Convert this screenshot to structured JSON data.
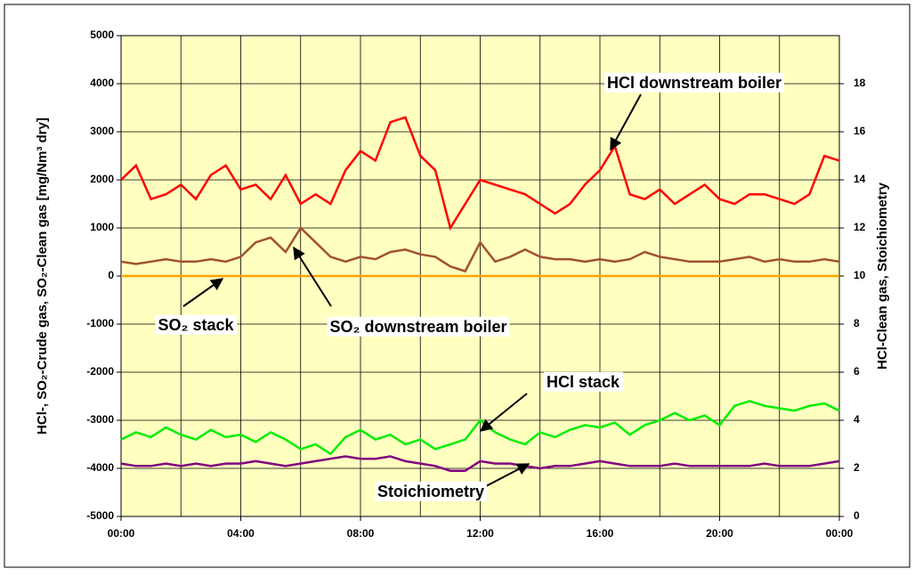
{
  "chart_data": {
    "type": "line",
    "ylabel": "HCl-, SO₂-Crude gas, SO₂-Clean gas [mg/Nm³ dry]",
    "y2label": "HCl-Clean gas, Stoichiometry",
    "x": [
      0,
      0.5,
      1,
      1.5,
      2,
      2.5,
      3,
      3.5,
      4,
      4.5,
      5,
      5.5,
      6,
      6.5,
      7,
      7.5,
      8,
      8.5,
      9,
      9.5,
      10,
      10.5,
      11,
      11.5,
      12,
      12.5,
      13,
      13.5,
      14,
      14.5,
      15,
      15.5,
      16,
      16.5,
      17,
      17.5,
      18,
      18.5,
      19,
      19.5,
      20,
      20.5,
      21,
      21.5,
      22,
      22.5,
      23,
      23.5,
      24
    ],
    "xlim": [
      0,
      24
    ],
    "xticks": [
      {
        "value": 0,
        "label": "00:00"
      },
      {
        "value": 4,
        "label": "04:00"
      },
      {
        "value": 8,
        "label": "08:00"
      },
      {
        "value": 12,
        "label": "12:00"
      },
      {
        "value": 16,
        "label": "16:00"
      },
      {
        "value": 20,
        "label": "20:00"
      },
      {
        "value": 24,
        "label": "00:00"
      }
    ],
    "xminorticks": [
      2,
      6,
      10,
      14,
      18,
      22
    ],
    "ylim": [
      -5000,
      5000
    ],
    "yticks": [
      -5000,
      -4000,
      -3000,
      -2000,
      -1000,
      0,
      1000,
      2000,
      3000,
      4000,
      5000
    ],
    "y2lim": [
      0,
      20
    ],
    "y2ticks": [
      0,
      2,
      4,
      6,
      8,
      10,
      12,
      14,
      16,
      18
    ],
    "grid": true,
    "series": [
      {
        "name": "HCl downstream boiler",
        "color": "#ff0000",
        "values": [
          2000,
          2300,
          1600,
          1700,
          1900,
          1600,
          2100,
          2300,
          1800,
          1900,
          1600,
          2100,
          1500,
          1700,
          1500,
          2200,
          2600,
          2400,
          3200,
          3300,
          2500,
          2200,
          1000,
          1500,
          2000,
          1900,
          1800,
          1700,
          1500,
          1300,
          1500,
          1900,
          2200,
          2700,
          1700,
          1600,
          1800,
          1500,
          1700,
          1900,
          1600,
          1500,
          1700,
          1700,
          1600,
          1500,
          1700,
          2500,
          2400
        ]
      },
      {
        "name": "SO₂ downstream boiler",
        "color": "#a0522d",
        "values": [
          300,
          250,
          300,
          350,
          300,
          300,
          350,
          300,
          400,
          700,
          800,
          500,
          1000,
          700,
          400,
          300,
          400,
          350,
          500,
          550,
          450,
          400,
          200,
          100,
          700,
          300,
          400,
          550,
          400,
          350,
          350,
          300,
          350,
          300,
          350,
          500,
          400,
          350,
          300,
          300,
          300,
          350,
          400,
          300,
          350,
          300,
          300,
          350,
          300
        ]
      },
      {
        "name": "SO₂ stack",
        "color": "#ffa500",
        "values": [
          0,
          0,
          0,
          0,
          0,
          0,
          0,
          0,
          0,
          0,
          0,
          0,
          0,
          0,
          0,
          0,
          0,
          0,
          0,
          0,
          0,
          0,
          0,
          0,
          0,
          0,
          0,
          0,
          0,
          0,
          0,
          0,
          0,
          0,
          0,
          0,
          0,
          0,
          0,
          0,
          0,
          0,
          0,
          0,
          0,
          0,
          0,
          0,
          0
        ]
      },
      {
        "name": "HCl stack",
        "color": "#00ee00",
        "axis": "y2",
        "values": [
          3.2,
          3.5,
          3.3,
          3.7,
          3.4,
          3.2,
          3.6,
          3.3,
          3.4,
          3.1,
          3.5,
          3.2,
          2.8,
          3.0,
          2.6,
          3.3,
          3.6,
          3.2,
          3.4,
          3.0,
          3.2,
          2.8,
          3.0,
          3.2,
          4.0,
          3.5,
          3.2,
          3.0,
          3.5,
          3.3,
          3.6,
          3.8,
          3.7,
          3.9,
          3.4,
          3.8,
          4.0,
          4.3,
          4.0,
          4.2,
          3.8,
          4.6,
          4.8,
          4.6,
          4.5,
          4.4,
          4.6,
          4.7,
          4.4
        ]
      },
      {
        "name": "Stoichiometry",
        "color": "#800080",
        "axis": "y2",
        "values": [
          2.2,
          2.1,
          2.1,
          2.2,
          2.1,
          2.2,
          2.1,
          2.2,
          2.2,
          2.3,
          2.2,
          2.1,
          2.2,
          2.3,
          2.4,
          2.5,
          2.4,
          2.4,
          2.5,
          2.3,
          2.2,
          2.1,
          1.9,
          1.9,
          2.3,
          2.2,
          2.2,
          2.1,
          2.0,
          2.1,
          2.1,
          2.2,
          2.3,
          2.2,
          2.1,
          2.1,
          2.1,
          2.2,
          2.1,
          2.1,
          2.1,
          2.1,
          2.1,
          2.2,
          2.1,
          2.1,
          2.1,
          2.2,
          2.3
        ]
      }
    ]
  }
}
